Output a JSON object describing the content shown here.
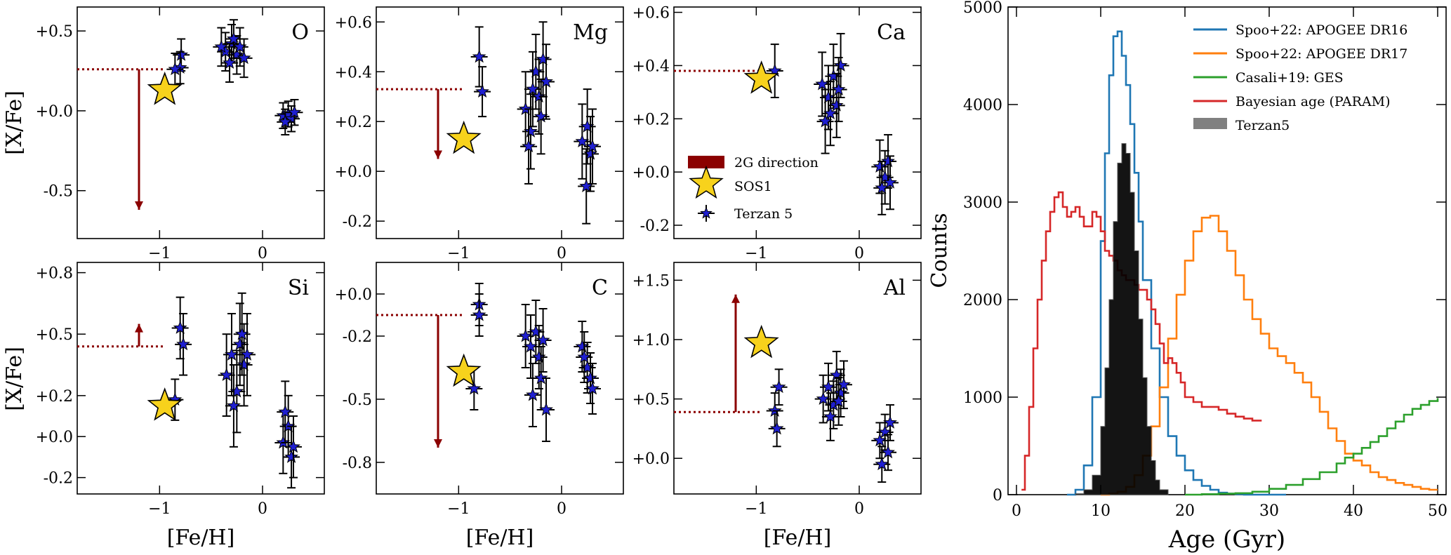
{
  "colors": {
    "arrow": "#8b0000",
    "star": "#f7d21c",
    "terzan": "#1f1fd0",
    "apogee16": "#1f77b4",
    "apogee17": "#ff7f0e",
    "ges": "#2ca02c",
    "param": "#d62728",
    "terzan_hist": "#000000"
  },
  "chart_data": [
    {
      "type": "scatter",
      "element": "O",
      "label": "O",
      "xlabel": "",
      "ylabel": "[X/Fe]",
      "xlim": [
        -1.8,
        0.6
      ],
      "ylim": [
        -0.8,
        0.65
      ],
      "yticks": [
        0.5,
        0.0,
        -0.5
      ],
      "ytick_labels": [
        "+0.5",
        "+0.0",
        "-0.5"
      ],
      "xticks": [
        -1,
        0
      ],
      "xtick_labels": [
        "−1",
        "0"
      ],
      "sos1": {
        "x": -0.95,
        "y": 0.13
      },
      "guide": {
        "x": -1.2,
        "y": 0.26,
        "arrow_to": -0.62,
        "dir": "down"
      },
      "terzan5": [
        {
          "x": -0.79,
          "y": 0.35,
          "yerr": 0.1
        },
        {
          "x": -0.8,
          "y": 0.27,
          "yerr": 0.1
        },
        {
          "x": -0.85,
          "y": 0.26,
          "yerr": 0.1
        },
        {
          "x": -0.36,
          "y": 0.37,
          "yerr": 0.12
        },
        {
          "x": -0.3,
          "y": 0.42,
          "yerr": 0.12
        },
        {
          "x": -0.25,
          "y": 0.35,
          "yerr": 0.12
        },
        {
          "x": -0.32,
          "y": 0.3,
          "yerr": 0.12
        },
        {
          "x": -0.22,
          "y": 0.4,
          "yerr": 0.12
        },
        {
          "x": -0.18,
          "y": 0.33,
          "yerr": 0.12
        },
        {
          "x": -0.28,
          "y": 0.45,
          "yerr": 0.12
        },
        {
          "x": -0.4,
          "y": 0.4,
          "yerr": 0.12
        },
        {
          "x": 0.2,
          "y": -0.03,
          "yerr": 0.08
        },
        {
          "x": 0.25,
          "y": -0.02,
          "yerr": 0.08
        },
        {
          "x": 0.28,
          "y": -0.05,
          "yerr": 0.08
        },
        {
          "x": 0.22,
          "y": -0.07,
          "yerr": 0.08
        },
        {
          "x": 0.31,
          "y": -0.01,
          "yerr": 0.08
        }
      ]
    },
    {
      "type": "scatter",
      "element": "Mg",
      "label": "Mg",
      "xlabel": "",
      "ylabel": "",
      "xlim": [
        -1.8,
        0.6
      ],
      "ylim": [
        -0.27,
        0.66
      ],
      "yticks": [
        0.6,
        0.4,
        0.2,
        0.0,
        -0.2
      ],
      "ytick_labels": [
        "+0.6",
        "+0.4",
        "+0.2",
        "+0.0",
        "-0.2"
      ],
      "xticks": [
        -1,
        0
      ],
      "xtick_labels": [
        "−1",
        "0"
      ],
      "sos1": {
        "x": -0.95,
        "y": 0.13
      },
      "guide": {
        "x": -1.2,
        "y": 0.33,
        "arrow_to": 0.05,
        "dir": "down"
      },
      "terzan5": [
        {
          "x": -0.8,
          "y": 0.46,
          "yerr": 0.12
        },
        {
          "x": -0.77,
          "y": 0.32,
          "yerr": 0.1
        },
        {
          "x": -0.35,
          "y": 0.25,
          "yerr": 0.15
        },
        {
          "x": -0.3,
          "y": 0.16,
          "yerr": 0.15
        },
        {
          "x": -0.25,
          "y": 0.4,
          "yerr": 0.15
        },
        {
          "x": -0.22,
          "y": 0.3,
          "yerr": 0.15
        },
        {
          "x": -0.18,
          "y": 0.45,
          "yerr": 0.15
        },
        {
          "x": -0.28,
          "y": 0.33,
          "yerr": 0.15
        },
        {
          "x": -0.2,
          "y": 0.22,
          "yerr": 0.15
        },
        {
          "x": -0.15,
          "y": 0.36,
          "yerr": 0.15
        },
        {
          "x": -0.32,
          "y": 0.1,
          "yerr": 0.15
        },
        {
          "x": 0.2,
          "y": 0.12,
          "yerr": 0.15
        },
        {
          "x": 0.25,
          "y": 0.18,
          "yerr": 0.15
        },
        {
          "x": 0.28,
          "y": 0.07,
          "yerr": 0.15
        },
        {
          "x": 0.24,
          "y": -0.06,
          "yerr": 0.15
        },
        {
          "x": 0.3,
          "y": 0.1,
          "yerr": 0.15
        }
      ]
    },
    {
      "type": "scatter",
      "element": "Ca",
      "label": "Ca",
      "xlabel": "",
      "ylabel": "",
      "xlim": [
        -1.8,
        0.6
      ],
      "ylim": [
        -0.25,
        0.62
      ],
      "yticks": [
        0.6,
        0.4,
        0.2,
        0.0,
        -0.2
      ],
      "ytick_labels": [
        "+0.6",
        "+0.4",
        "+0.2",
        "+0.0",
        "-0.2"
      ],
      "xticks": [
        -1,
        0
      ],
      "xtick_labels": [
        "−1",
        "0"
      ],
      "sos1": {
        "x": -0.95,
        "y": 0.35
      },
      "guide": {
        "x": -1.2,
        "y": 0.38,
        "arrow_to": null,
        "dir": "none"
      },
      "terzan5": [
        {
          "x": -0.82,
          "y": 0.38,
          "yerr": 0.1
        },
        {
          "x": -0.36,
          "y": 0.33,
          "yerr": 0.12
        },
        {
          "x": -0.3,
          "y": 0.28,
          "yerr": 0.12
        },
        {
          "x": -0.25,
          "y": 0.36,
          "yerr": 0.12
        },
        {
          "x": -0.22,
          "y": 0.25,
          "yerr": 0.12
        },
        {
          "x": -0.18,
          "y": 0.4,
          "yerr": 0.12
        },
        {
          "x": -0.28,
          "y": 0.22,
          "yerr": 0.12
        },
        {
          "x": -0.2,
          "y": 0.31,
          "yerr": 0.12
        },
        {
          "x": -0.33,
          "y": 0.19,
          "yerr": 0.12
        },
        {
          "x": 0.2,
          "y": 0.02,
          "yerr": 0.1
        },
        {
          "x": 0.25,
          "y": -0.02,
          "yerr": 0.1
        },
        {
          "x": 0.28,
          "y": 0.04,
          "yerr": 0.1
        },
        {
          "x": 0.22,
          "y": -0.06,
          "yerr": 0.1
        },
        {
          "x": 0.3,
          "y": -0.04,
          "yerr": 0.1
        }
      ],
      "legend": [
        "2G direction",
        "SOS1",
        "Terzan 5"
      ]
    },
    {
      "type": "scatter",
      "element": "Si",
      "label": "Si",
      "xlabel": "[Fe/H]",
      "ylabel": "[X/Fe]",
      "xlim": [
        -1.8,
        0.6
      ],
      "ylim": [
        -0.28,
        0.85
      ],
      "yticks": [
        0.8,
        0.5,
        0.2,
        0.0,
        -0.2
      ],
      "ytick_labels": [
        "+0.8",
        "+0.5",
        "+0.2",
        "+0.0",
        "-0.2"
      ],
      "xticks": [
        -1,
        0
      ],
      "xtick_labels": [
        "−1",
        "0"
      ],
      "sos1": {
        "x": -0.95,
        "y": 0.15
      },
      "guide": {
        "x": -1.2,
        "y": 0.44,
        "arrow_to": 0.55,
        "dir": "up"
      },
      "terzan5": [
        {
          "x": -0.85,
          "y": 0.18,
          "yerr": 0.1
        },
        {
          "x": -0.8,
          "y": 0.53,
          "yerr": 0.15
        },
        {
          "x": -0.77,
          "y": 0.45,
          "yerr": 0.15
        },
        {
          "x": -0.35,
          "y": 0.3,
          "yerr": 0.2
        },
        {
          "x": -0.3,
          "y": 0.4,
          "yerr": 0.2
        },
        {
          "x": -0.25,
          "y": 0.22,
          "yerr": 0.2
        },
        {
          "x": -0.22,
          "y": 0.45,
          "yerr": 0.2
        },
        {
          "x": -0.18,
          "y": 0.35,
          "yerr": 0.2
        },
        {
          "x": -0.28,
          "y": 0.15,
          "yerr": 0.2
        },
        {
          "x": -0.2,
          "y": 0.5,
          "yerr": 0.2
        },
        {
          "x": -0.15,
          "y": 0.4,
          "yerr": 0.2
        },
        {
          "x": 0.2,
          "y": -0.03,
          "yerr": 0.15
        },
        {
          "x": 0.25,
          "y": 0.05,
          "yerr": 0.15
        },
        {
          "x": 0.28,
          "y": -0.1,
          "yerr": 0.15
        },
        {
          "x": 0.22,
          "y": 0.12,
          "yerr": 0.15
        },
        {
          "x": 0.3,
          "y": -0.05,
          "yerr": 0.15
        }
      ]
    },
    {
      "type": "scatter",
      "element": "C",
      "label": "C",
      "xlabel": "[Fe/H]",
      "ylabel": "",
      "xlim": [
        -1.8,
        0.6
      ],
      "ylim": [
        -0.95,
        0.15
      ],
      "yticks": [
        0.0,
        -0.2,
        -0.5,
        -0.8
      ],
      "ytick_labels": [
        "+0.0",
        "-0.2",
        "-0.5",
        "-0.8"
      ],
      "xticks": [
        -1,
        0
      ],
      "xtick_labels": [
        "−1",
        "0"
      ],
      "sos1": {
        "x": -0.95,
        "y": -0.37
      },
      "guide": {
        "x": -1.2,
        "y": -0.1,
        "arrow_to": -0.73,
        "dir": "down"
      },
      "terzan5": [
        {
          "x": -0.8,
          "y": -0.05,
          "yerr": 0.1
        },
        {
          "x": -0.8,
          "y": -0.1,
          "yerr": 0.1
        },
        {
          "x": -0.85,
          "y": -0.45,
          "yerr": 0.1
        },
        {
          "x": -0.35,
          "y": -0.2,
          "yerr": 0.15
        },
        {
          "x": -0.3,
          "y": -0.25,
          "yerr": 0.15
        },
        {
          "x": -0.25,
          "y": -0.18,
          "yerr": 0.15
        },
        {
          "x": -0.22,
          "y": -0.3,
          "yerr": 0.15
        },
        {
          "x": -0.18,
          "y": -0.22,
          "yerr": 0.15
        },
        {
          "x": -0.28,
          "y": -0.48,
          "yerr": 0.15
        },
        {
          "x": -0.2,
          "y": -0.4,
          "yerr": 0.15
        },
        {
          "x": -0.15,
          "y": -0.55,
          "yerr": 0.15
        },
        {
          "x": 0.2,
          "y": -0.25,
          "yerr": 0.12
        },
        {
          "x": 0.25,
          "y": -0.35,
          "yerr": 0.12
        },
        {
          "x": 0.28,
          "y": -0.4,
          "yerr": 0.12
        },
        {
          "x": 0.22,
          "y": -0.3,
          "yerr": 0.12
        },
        {
          "x": 0.3,
          "y": -0.45,
          "yerr": 0.12
        }
      ]
    },
    {
      "type": "scatter",
      "element": "Al",
      "label": "Al",
      "xlabel": "[Fe/H]",
      "ylabel": "",
      "xlim": [
        -1.8,
        0.6
      ],
      "ylim": [
        -0.3,
        1.65
      ],
      "yticks": [
        1.5,
        1.0,
        0.5,
        0.0
      ],
      "ytick_labels": [
        "+1.5",
        "+1.0",
        "+0.5",
        "+0.0"
      ],
      "xticks": [
        -1,
        0
      ],
      "xtick_labels": [
        "−1",
        "0"
      ],
      "sos1": {
        "x": -0.95,
        "y": 0.97
      },
      "guide": {
        "x": -1.2,
        "y": 0.39,
        "arrow_to": 1.38,
        "dir": "up"
      },
      "terzan5": [
        {
          "x": -0.82,
          "y": 0.4,
          "yerr": 0.15
        },
        {
          "x": -0.78,
          "y": 0.6,
          "yerr": 0.15
        },
        {
          "x": -0.8,
          "y": 0.25,
          "yerr": 0.15
        },
        {
          "x": -0.35,
          "y": 0.5,
          "yerr": 0.2
        },
        {
          "x": -0.3,
          "y": 0.6,
          "yerr": 0.2
        },
        {
          "x": -0.25,
          "y": 0.45,
          "yerr": 0.2
        },
        {
          "x": -0.22,
          "y": 0.7,
          "yerr": 0.2
        },
        {
          "x": -0.18,
          "y": 0.55,
          "yerr": 0.2
        },
        {
          "x": -0.28,
          "y": 0.35,
          "yerr": 0.2
        },
        {
          "x": -0.2,
          "y": 0.48,
          "yerr": 0.2
        },
        {
          "x": -0.15,
          "y": 0.62,
          "yerr": 0.2
        },
        {
          "x": 0.2,
          "y": 0.15,
          "yerr": 0.15
        },
        {
          "x": 0.25,
          "y": 0.22,
          "yerr": 0.15
        },
        {
          "x": 0.28,
          "y": 0.05,
          "yerr": 0.15
        },
        {
          "x": 0.22,
          "y": -0.05,
          "yerr": 0.15
        },
        {
          "x": 0.3,
          "y": 0.3,
          "yerr": 0.15
        }
      ]
    },
    {
      "type": "step-histogram",
      "xlabel": "Age (Gyr)",
      "ylabel": "Counts",
      "xlim": [
        -1,
        51
      ],
      "ylim": [
        0,
        5000
      ],
      "xticks": [
        0,
        10,
        20,
        30,
        40,
        50
      ],
      "xtick_labels": [
        "0",
        "10",
        "20",
        "30",
        "40",
        "50"
      ],
      "yticks": [
        0,
        1000,
        2000,
        3000,
        4000,
        5000
      ],
      "ytick_labels": [
        "0",
        "1000",
        "2000",
        "3000",
        "4000",
        "5000"
      ],
      "series": [
        {
          "name": "Spoo+22: APOGEE DR16",
          "color_key": "apogee16",
          "style": "step",
          "x": [
            6,
            7,
            8,
            9,
            10,
            10.5,
            11,
            11.5,
            12,
            12.5,
            13,
            13.5,
            14,
            14.5,
            15,
            16,
            17,
            18,
            19,
            20,
            21,
            22,
            23,
            24,
            25,
            26,
            27,
            28,
            30,
            32
          ],
          "y": [
            0,
            50,
            300,
            1000,
            2600,
            3500,
            4300,
            4700,
            4750,
            4500,
            4200,
            3800,
            3300,
            2800,
            2200,
            1500,
            1000,
            600,
            400,
            250,
            150,
            90,
            50,
            20,
            10,
            5,
            0,
            0,
            0,
            0
          ]
        },
        {
          "name": "Spoo+22: APOGEE DR17",
          "color_key": "apogee17",
          "style": "step",
          "x": [
            10,
            11,
            12,
            13,
            14,
            15,
            16,
            17,
            18,
            19,
            20,
            21,
            22,
            23,
            24,
            25,
            26,
            27,
            28,
            29,
            30,
            31,
            32,
            33,
            34,
            35,
            36,
            37,
            38,
            39,
            40,
            41,
            42,
            43,
            44,
            45,
            46,
            47,
            48,
            49,
            50
          ],
          "y": [
            0,
            10,
            30,
            80,
            200,
            400,
            700,
            1100,
            1600,
            2050,
            2400,
            2700,
            2840,
            2860,
            2700,
            2500,
            2250,
            2000,
            1800,
            1650,
            1500,
            1420,
            1350,
            1250,
            1150,
            1000,
            850,
            680,
            550,
            420,
            350,
            300,
            230,
            180,
            150,
            120,
            100,
            80,
            60,
            50,
            50
          ]
        },
        {
          "name": "Casali+19: GES",
          "color_key": "ges",
          "style": "step",
          "x": [
            20,
            22,
            24,
            26,
            28,
            30,
            32,
            34,
            36,
            38,
            39,
            40,
            41,
            42,
            43,
            44,
            45,
            46,
            47,
            48,
            49,
            50
          ],
          "y": [
            0,
            5,
            10,
            15,
            30,
            60,
            100,
            160,
            230,
            320,
            380,
            420,
            480,
            540,
            600,
            680,
            750,
            820,
            880,
            920,
            960,
            990
          ]
        },
        {
          "name": "Bayesian age (PARAM)",
          "color_key": "param",
          "style": "step",
          "x": [
            0.6,
            1,
            1.5,
            2,
            2.5,
            3,
            3.5,
            4,
            4.5,
            5,
            5.5,
            6,
            6.5,
            7,
            7.5,
            8,
            8.5,
            9,
            9.5,
            10,
            10.5,
            11,
            11.5,
            12,
            12.5,
            13,
            13.5,
            14,
            14.5,
            15,
            15.5,
            16,
            16.5,
            17,
            17.5,
            18,
            18.5,
            19,
            19.5,
            20,
            21,
            22,
            23,
            24,
            25,
            26,
            27,
            28,
            29
          ],
          "y": [
            50,
            400,
            900,
            1500,
            2000,
            2400,
            2700,
            2900,
            3050,
            3100,
            2950,
            2850,
            2900,
            2950,
            2850,
            2750,
            2750,
            2900,
            2850,
            2700,
            2500,
            2450,
            2400,
            2300,
            2250,
            2200,
            2200,
            2150,
            2100,
            2100,
            2000,
            1900,
            1750,
            1550,
            1350,
            1400,
            1350,
            1250,
            1150,
            1000,
            950,
            900,
            900,
            870,
            830,
            800,
            780,
            760,
            750
          ]
        },
        {
          "name": "Terzan5",
          "color_key": "terzan_hist",
          "style": "filled",
          "x": [
            7,
            8,
            9,
            10,
            10.5,
            11,
            11.5,
            12,
            12.5,
            13,
            13.5,
            14,
            14.5,
            15,
            15.5,
            16,
            16.5,
            17,
            18
          ],
          "y": [
            10,
            50,
            200,
            700,
            1300,
            2000,
            2800,
            3400,
            3600,
            3500,
            3100,
            2500,
            1800,
            1200,
            700,
            350,
            150,
            50,
            0
          ]
        }
      ],
      "legend": [
        "Spoo+22: APOGEE DR16",
        "Spoo+22: APOGEE DR17",
        "Casali+19: GES",
        "Bayesian age (PARAM)",
        "Terzan5"
      ]
    }
  ]
}
